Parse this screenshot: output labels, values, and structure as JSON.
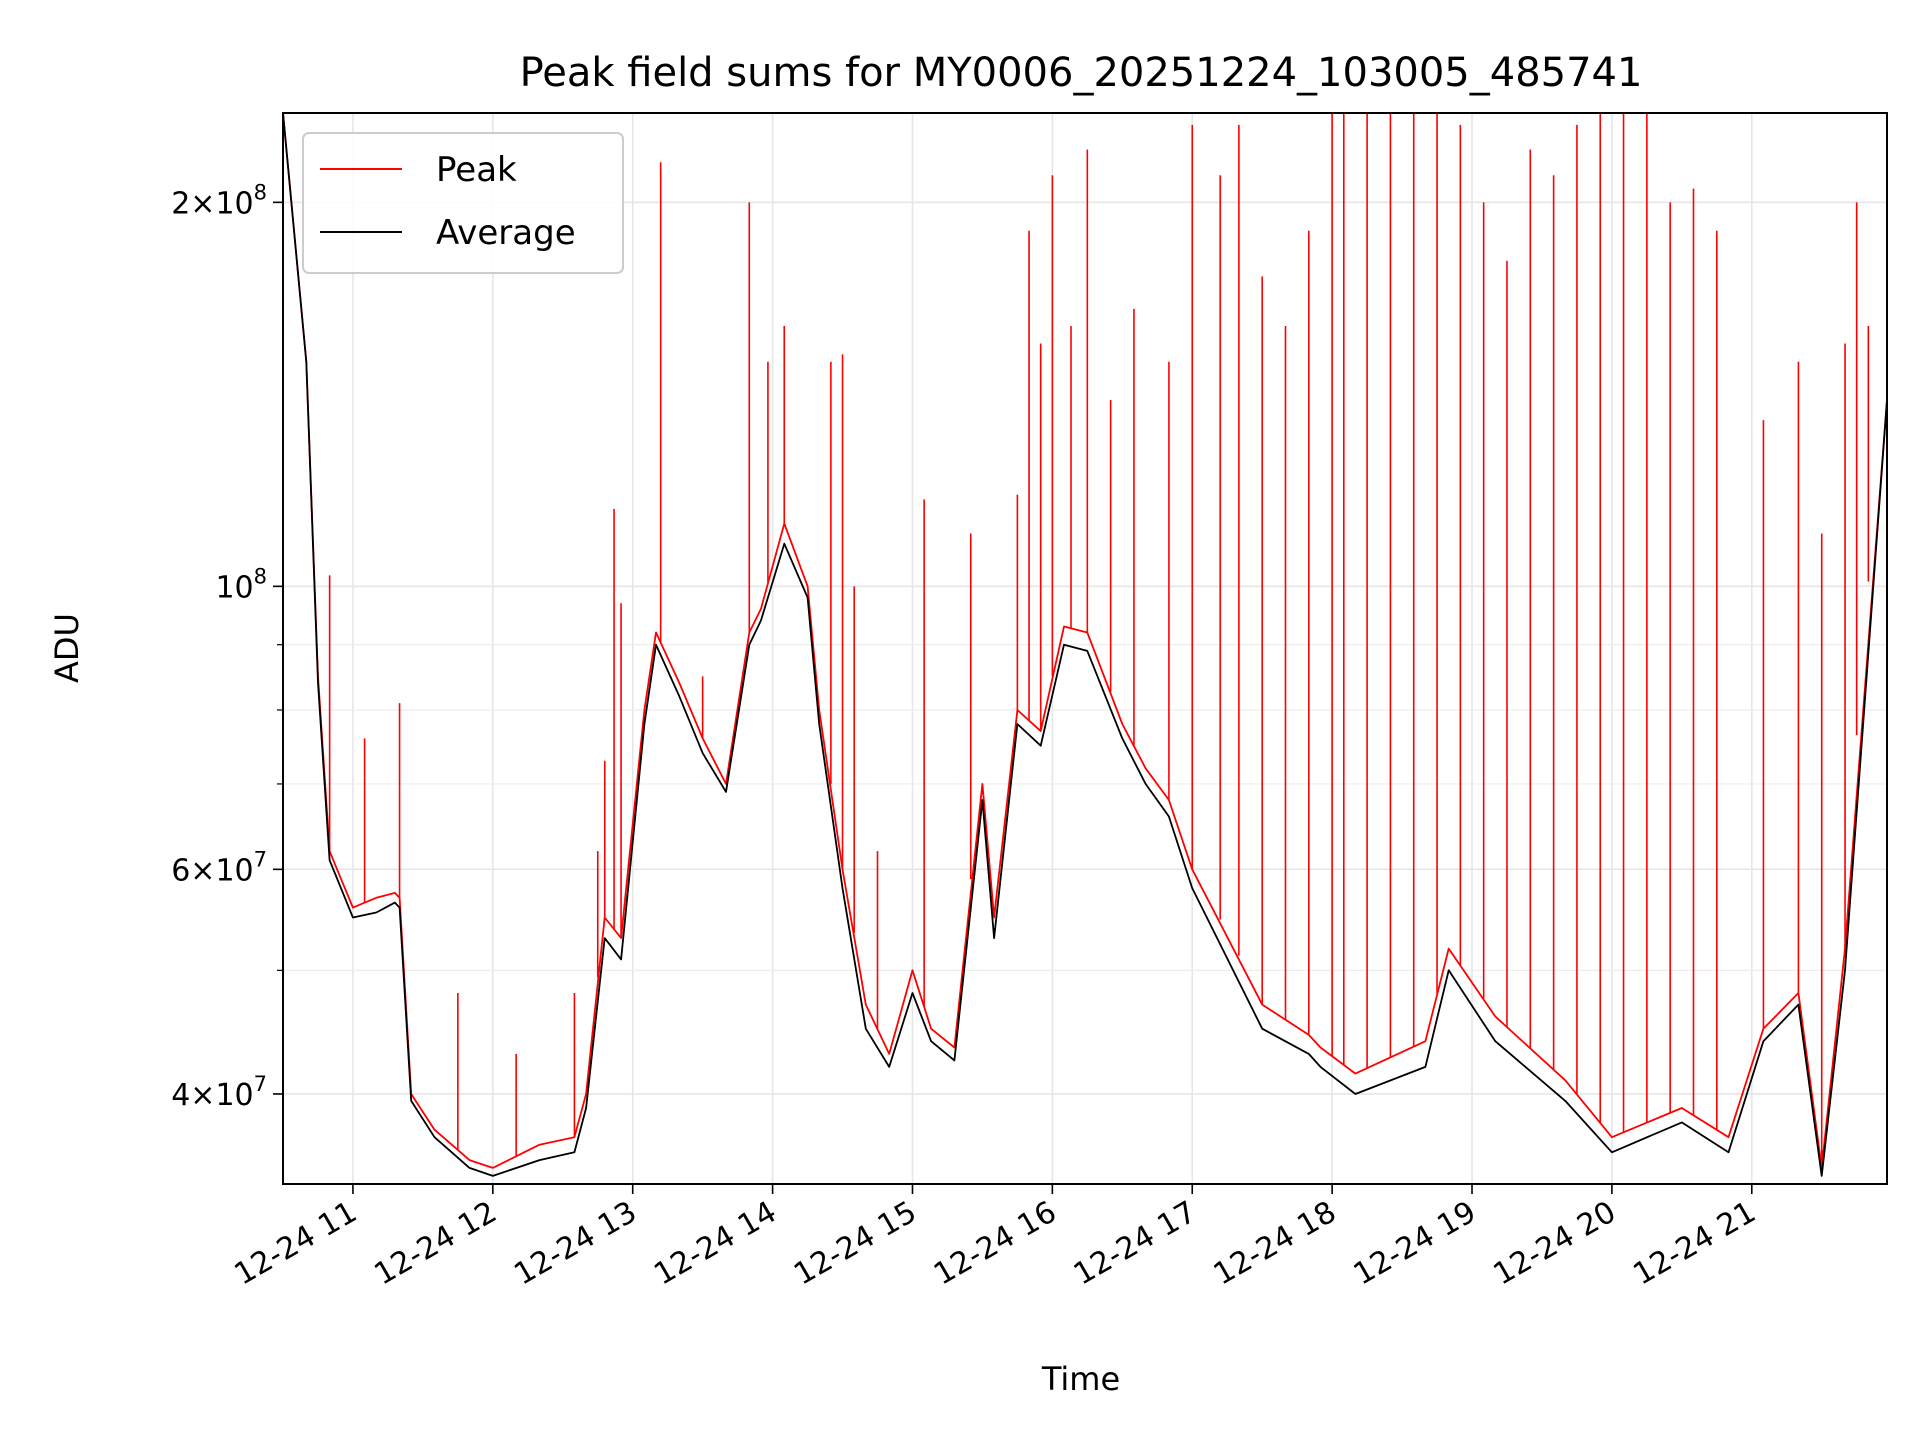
{
  "chart_data": {
    "type": "line",
    "title": "Peak field sums for MY0006_20251224_103005_485741",
    "xlabel": "Time",
    "ylabel": "ADU",
    "y_scale": "log",
    "ylim": [
      34000000,
      235000000
    ],
    "xlim": [
      "2025-12-24 10:30",
      "2025-12-24 21:58"
    ],
    "grid": true,
    "legend_position": "top-left",
    "x_tick_labels": [
      "12-24 11",
      "12-24 12",
      "12-24 13",
      "12-24 14",
      "12-24 15",
      "12-24 16",
      "12-24 17",
      "12-24 18",
      "12-24 19",
      "12-24 20",
      "12-24 21"
    ],
    "x_tick_values": [
      "2025-12-24 11:00",
      "2025-12-24 12:00",
      "2025-12-24 13:00",
      "2025-12-24 14:00",
      "2025-12-24 15:00",
      "2025-12-24 16:00",
      "2025-12-24 17:00",
      "2025-12-24 18:00",
      "2025-12-24 19:00",
      "2025-12-24 20:00",
      "2025-12-24 21:00"
    ],
    "y_ticks": [
      {
        "value": 40000000,
        "mantissa": "4",
        "exponent": "7"
      },
      {
        "value": 60000000,
        "mantissa": "6",
        "exponent": "7"
      },
      {
        "value": 100000000,
        "mantissa": "",
        "exponent": "8"
      },
      {
        "value": 200000000,
        "mantissa": "2",
        "exponent": "8"
      }
    ],
    "y_minor_ticks": [
      50000000,
      70000000,
      80000000,
      90000000
    ],
    "series": [
      {
        "name": "Peak",
        "color": "#ff0000",
        "x": [
          "2025-12-24 10:30",
          "2025-12-24 10:40",
          "2025-12-24 10:45",
          "2025-12-24 10:50",
          "2025-12-24 11:00",
          "2025-12-24 11:10",
          "2025-12-24 11:18",
          "2025-12-24 11:20",
          "2025-12-24 11:25",
          "2025-12-24 11:35",
          "2025-12-24 11:50",
          "2025-12-24 12:00",
          "2025-12-24 12:20",
          "2025-12-24 12:35",
          "2025-12-24 12:40",
          "2025-12-24 12:48",
          "2025-12-24 12:55",
          "2025-12-24 13:05",
          "2025-12-24 13:10",
          "2025-12-24 13:20",
          "2025-12-24 13:30",
          "2025-12-24 13:40",
          "2025-12-24 13:50",
          "2025-12-24 13:55",
          "2025-12-24 14:05",
          "2025-12-24 14:15",
          "2025-12-24 14:20",
          "2025-12-24 14:30",
          "2025-12-24 14:40",
          "2025-12-24 14:50",
          "2025-12-24 15:00",
          "2025-12-24 15:08",
          "2025-12-24 15:18",
          "2025-12-24 15:30",
          "2025-12-24 15:35",
          "2025-12-24 15:45",
          "2025-12-24 15:55",
          "2025-12-24 16:05",
          "2025-12-24 16:15",
          "2025-12-24 16:30",
          "2025-12-24 16:40",
          "2025-12-24 16:50",
          "2025-12-24 17:00",
          "2025-12-24 17:30",
          "2025-12-24 17:50",
          "2025-12-24 17:55",
          "2025-12-24 18:10",
          "2025-12-24 18:40",
          "2025-12-24 18:50",
          "2025-12-24 19:10",
          "2025-12-24 19:40",
          "2025-12-24 20:00",
          "2025-12-24 20:30",
          "2025-12-24 20:50",
          "2025-12-24 21:05",
          "2025-12-24 21:20",
          "2025-12-24 21:30",
          "2025-12-24 21:40",
          "2025-12-24 21:58"
        ],
        "values": [
          235000000,
          150000000,
          85000000,
          62000000,
          56000000,
          57000000,
          57500000,
          57000000,
          40000000,
          37500000,
          35500000,
          35000000,
          36500000,
          37000000,
          40000000,
          55000000,
          53000000,
          80000000,
          92000000,
          84000000,
          76000000,
          70000000,
          92000000,
          96000000,
          112000000,
          100000000,
          80000000,
          60000000,
          47000000,
          43000000,
          50000000,
          45000000,
          43500000,
          70000000,
          55000000,
          80000000,
          77000000,
          93000000,
          92000000,
          78000000,
          72000000,
          68000000,
          60000000,
          47000000,
          44500000,
          43500000,
          41500000,
          44000000,
          52000000,
          46000000,
          41000000,
          37000000,
          39000000,
          37000000,
          45000000,
          48000000,
          35000000,
          52000000,
          140000000
        ]
      },
      {
        "name": "Average",
        "color": "#000000",
        "x": [
          "2025-12-24 10:30",
          "2025-12-24 10:40",
          "2025-12-24 10:45",
          "2025-12-24 10:50",
          "2025-12-24 11:00",
          "2025-12-24 11:10",
          "2025-12-24 11:18",
          "2025-12-24 11:20",
          "2025-12-24 11:25",
          "2025-12-24 11:35",
          "2025-12-24 11:50",
          "2025-12-24 12:00",
          "2025-12-24 12:20",
          "2025-12-24 12:35",
          "2025-12-24 12:40",
          "2025-12-24 12:48",
          "2025-12-24 12:55",
          "2025-12-24 13:05",
          "2025-12-24 13:10",
          "2025-12-24 13:20",
          "2025-12-24 13:30",
          "2025-12-24 13:40",
          "2025-12-24 13:50",
          "2025-12-24 13:55",
          "2025-12-24 14:05",
          "2025-12-24 14:15",
          "2025-12-24 14:20",
          "2025-12-24 14:30",
          "2025-12-24 14:40",
          "2025-12-24 14:50",
          "2025-12-24 15:00",
          "2025-12-24 15:08",
          "2025-12-24 15:18",
          "2025-12-24 15:30",
          "2025-12-24 15:35",
          "2025-12-24 15:45",
          "2025-12-24 15:55",
          "2025-12-24 16:05",
          "2025-12-24 16:15",
          "2025-12-24 16:30",
          "2025-12-24 16:40",
          "2025-12-24 16:50",
          "2025-12-24 17:00",
          "2025-12-24 17:30",
          "2025-12-24 17:50",
          "2025-12-24 17:55",
          "2025-12-24 18:10",
          "2025-12-24 18:40",
          "2025-12-24 18:50",
          "2025-12-24 19:10",
          "2025-12-24 19:40",
          "2025-12-24 20:00",
          "2025-12-24 20:30",
          "2025-12-24 20:50",
          "2025-12-24 21:05",
          "2025-12-24 21:20",
          "2025-12-24 21:30",
          "2025-12-24 21:40",
          "2025-12-24 21:58"
        ],
        "values": [
          235000000,
          150000000,
          84000000,
          61000000,
          55000000,
          55500000,
          56500000,
          56000000,
          39500000,
          37000000,
          35000000,
          34500000,
          35500000,
          36000000,
          39000000,
          53000000,
          51000000,
          78000000,
          90000000,
          82000000,
          74000000,
          69000000,
          90000000,
          94000000,
          108000000,
          98000000,
          78000000,
          58000000,
          45000000,
          42000000,
          48000000,
          44000000,
          42500000,
          68000000,
          53000000,
          78000000,
          75000000,
          90000000,
          89000000,
          76000000,
          70000000,
          66000000,
          58000000,
          45000000,
          43000000,
          42000000,
          40000000,
          42000000,
          50000000,
          44000000,
          39500000,
          36000000,
          38000000,
          36000000,
          44000000,
          47000000,
          34500000,
          50000000,
          140000000
        ]
      }
    ],
    "spikes": {
      "series": "Peak",
      "peaks": [
        [
          "2025-12-24 10:50",
          102000000
        ],
        [
          "2025-12-24 11:05",
          76000000
        ],
        [
          "2025-12-24 11:20",
          81000000
        ],
        [
          "2025-12-24 11:45",
          48000000
        ],
        [
          "2025-12-24 12:10",
          43000000
        ],
        [
          "2025-12-24 12:35",
          48000000
        ],
        [
          "2025-12-24 12:45",
          62000000
        ],
        [
          "2025-12-24 12:48",
          73000000
        ],
        [
          "2025-12-24 12:52",
          115000000
        ],
        [
          "2025-12-24 12:55",
          97000000
        ],
        [
          "2025-12-24 13:12",
          215000000
        ],
        [
          "2025-12-24 13:30",
          85000000
        ],
        [
          "2025-12-24 13:50",
          200000000
        ],
        [
          "2025-12-24 13:58",
          150000000
        ],
        [
          "2025-12-24 14:05",
          160000000
        ],
        [
          "2025-12-24 14:25",
          150000000
        ],
        [
          "2025-12-24 14:30",
          152000000
        ],
        [
          "2025-12-24 14:35",
          100000000
        ],
        [
          "2025-12-24 14:45",
          62000000
        ],
        [
          "2025-12-24 15:05",
          117000000
        ],
        [
          "2025-12-24 15:25",
          110000000
        ],
        [
          "2025-12-24 15:45",
          118000000
        ],
        [
          "2025-12-24 15:50",
          190000000
        ],
        [
          "2025-12-24 15:55",
          155000000
        ],
        [
          "2025-12-24 16:00",
          210000000
        ],
        [
          "2025-12-24 16:08",
          160000000
        ],
        [
          "2025-12-24 16:15",
          220000000
        ],
        [
          "2025-12-24 16:25",
          140000000
        ],
        [
          "2025-12-24 16:35",
          165000000
        ],
        [
          "2025-12-24 16:50",
          150000000
        ],
        [
          "2025-12-24 17:00",
          230000000
        ],
        [
          "2025-12-24 17:12",
          210000000
        ],
        [
          "2025-12-24 17:20",
          230000000
        ],
        [
          "2025-12-24 17:30",
          175000000
        ],
        [
          "2025-12-24 17:40",
          160000000
        ],
        [
          "2025-12-24 17:50",
          190000000
        ],
        [
          "2025-12-24 18:00",
          235000000
        ],
        [
          "2025-12-24 18:05",
          235000000
        ],
        [
          "2025-12-24 18:15",
          235000000
        ],
        [
          "2025-12-24 18:25",
          235000000
        ],
        [
          "2025-12-24 18:35",
          235000000
        ],
        [
          "2025-12-24 18:45",
          235000000
        ],
        [
          "2025-12-24 18:55",
          230000000
        ],
        [
          "2025-12-24 19:05",
          200000000
        ],
        [
          "2025-12-24 19:15",
          180000000
        ],
        [
          "2025-12-24 19:25",
          220000000
        ],
        [
          "2025-12-24 19:35",
          210000000
        ],
        [
          "2025-12-24 19:45",
          230000000
        ],
        [
          "2025-12-24 19:55",
          235000000
        ],
        [
          "2025-12-24 20:05",
          235000000
        ],
        [
          "2025-12-24 20:15",
          235000000
        ],
        [
          "2025-12-24 20:25",
          200000000
        ],
        [
          "2025-12-24 20:35",
          205000000
        ],
        [
          "2025-12-24 20:45",
          190000000
        ],
        [
          "2025-12-24 21:05",
          135000000
        ],
        [
          "2025-12-24 21:20",
          150000000
        ],
        [
          "2025-12-24 21:30",
          110000000
        ],
        [
          "2025-12-24 21:40",
          155000000
        ],
        [
          "2025-12-24 21:45",
          200000000
        ],
        [
          "2025-12-24 21:50",
          160000000
        ]
      ]
    }
  }
}
